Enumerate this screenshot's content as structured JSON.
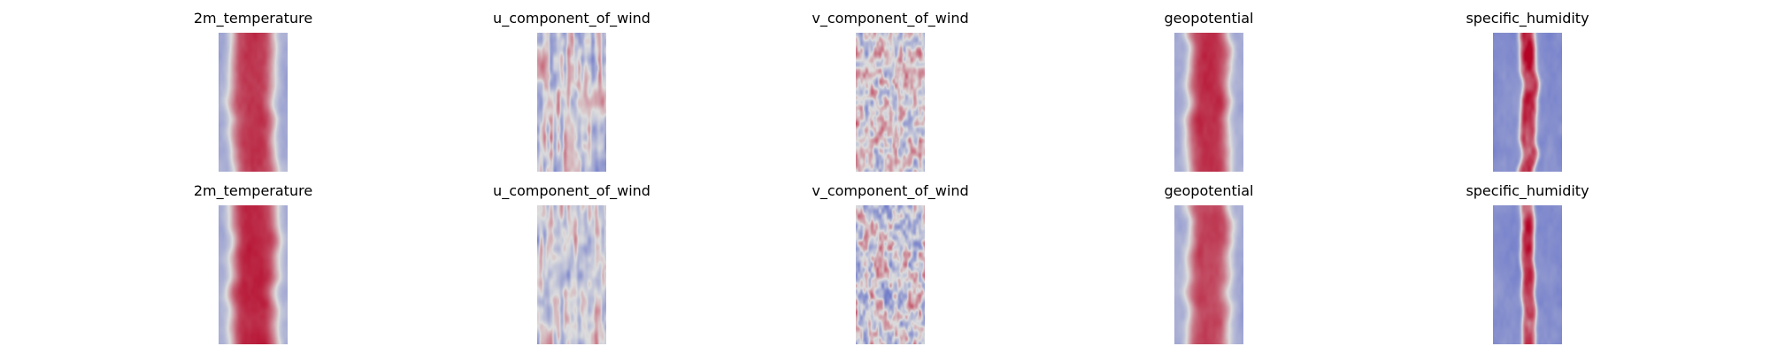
{
  "figure": {
    "colormap": "coolwarm",
    "colors": {
      "cold": "#3b4cc0",
      "neutral": "#dddddd",
      "hot": "#b40426"
    }
  },
  "chart_data": [
    {
      "type": "heatmap",
      "row": 1,
      "col": 1,
      "title": "2m_temperature",
      "pattern": "warm-band",
      "band_center": 0.5,
      "band_halfwidth": 0.32,
      "peak": 0.78,
      "noise": 0.12
    },
    {
      "type": "heatmap",
      "row": 1,
      "col": 2,
      "title": "u_component_of_wind",
      "pattern": "streaks",
      "peak": 0.45,
      "noise": 0.35
    },
    {
      "type": "heatmap",
      "row": 1,
      "col": 3,
      "title": "v_component_of_wind",
      "pattern": "speckle",
      "peak": 0.35,
      "noise": 0.4
    },
    {
      "type": "heatmap",
      "row": 1,
      "col": 4,
      "title": "geopotential",
      "pattern": "warm-band",
      "band_center": 0.5,
      "band_halfwidth": 0.3,
      "peak": 0.82,
      "noise": 0.1
    },
    {
      "type": "heatmap",
      "row": 1,
      "col": 5,
      "title": "specific_humidity",
      "pattern": "narrow-band",
      "band_center": 0.5,
      "band_halfwidth": 0.12,
      "peak": 0.8,
      "noise": 0.3
    },
    {
      "type": "heatmap",
      "row": 2,
      "col": 1,
      "title": "2m_temperature",
      "pattern": "warm-band",
      "band_center": 0.5,
      "band_halfwidth": 0.34,
      "peak": 0.85,
      "noise": 0.1
    },
    {
      "type": "heatmap",
      "row": 2,
      "col": 2,
      "title": "u_component_of_wind",
      "pattern": "streaks",
      "peak": 0.4,
      "noise": 0.4
    },
    {
      "type": "heatmap",
      "row": 2,
      "col": 3,
      "title": "v_component_of_wind",
      "pattern": "speckle",
      "peak": 0.4,
      "noise": 0.45
    },
    {
      "type": "heatmap",
      "row": 2,
      "col": 4,
      "title": "geopotential",
      "pattern": "warm-band",
      "band_center": 0.5,
      "band_halfwidth": 0.3,
      "peak": 0.72,
      "noise": 0.12
    },
    {
      "type": "heatmap",
      "row": 2,
      "col": 5,
      "title": "specific_humidity",
      "pattern": "narrow-band",
      "band_center": 0.5,
      "band_halfwidth": 0.1,
      "peak": 0.7,
      "noise": 0.3
    }
  ]
}
